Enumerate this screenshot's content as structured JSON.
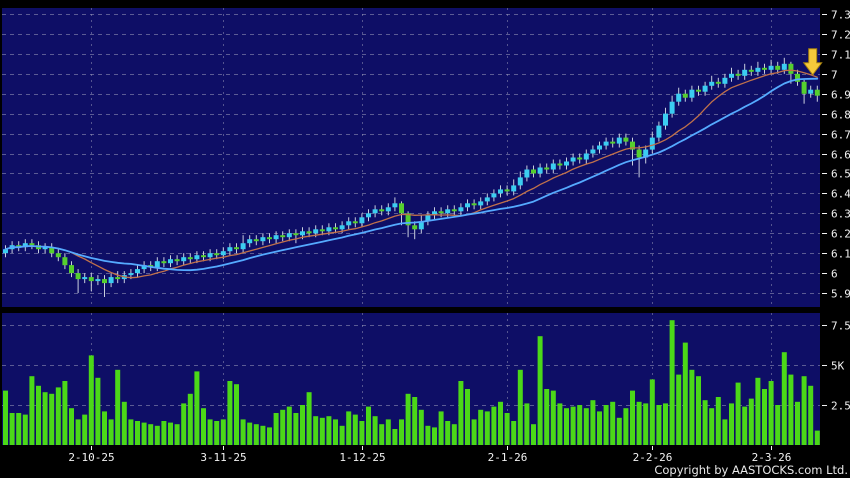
{
  "footer": {
    "copyright": "Copyright by AASTOCKS.com Ltd."
  },
  "colors": {
    "background": "#000000",
    "plot_bg": "#0E0E66",
    "grid": "#9A9ABB",
    "text": "#F2F2F2",
    "up": "#3BCDF1",
    "down": "#55CF2E",
    "wick": "#C9CFDE",
    "volume": "#4BD818",
    "ma10": "#C0714B",
    "ma20": "#55AAFF",
    "arrow_fill": "#F5C93B",
    "arrow_stroke": "#A8820F"
  },
  "chart_data": {
    "type": "candlestick_with_volume",
    "title": "",
    "legend_position": "none",
    "grid": "dashed",
    "price_axis": {
      "min": 5.83,
      "max": 7.33,
      "ticks": [
        {
          "label": "7.3",
          "value": 7.3
        },
        {
          "label": "7.2",
          "value": 7.2
        },
        {
          "label": "7.1",
          "value": 7.1
        },
        {
          "label": "7",
          "value": 7.0
        },
        {
          "label": "6.9",
          "value": 6.9
        },
        {
          "label": "6.8",
          "value": 6.8
        },
        {
          "label": "6.7",
          "value": 6.7
        },
        {
          "label": "6.6",
          "value": 6.6
        },
        {
          "label": "6.5",
          "value": 6.5
        },
        {
          "label": "6.4",
          "value": 6.4
        },
        {
          "label": "6.3",
          "value": 6.3
        },
        {
          "label": "6.2",
          "value": 6.2
        },
        {
          "label": "6.1",
          "value": 6.1
        },
        {
          "label": "6",
          "value": 6.0
        },
        {
          "label": "5.9",
          "value": 5.9
        }
      ]
    },
    "volume_axis": {
      "max": 8250,
      "ticks": [
        {
          "label": "7.5K",
          "value": 7500
        },
        {
          "label": "5K",
          "value": 5000
        },
        {
          "label": "2.5K",
          "value": 2500
        }
      ]
    },
    "x_axis": {
      "ticks": [
        {
          "label": "2-10-25",
          "index": 13
        },
        {
          "label": "3-11-25",
          "index": 33
        },
        {
          "label": "1-12-25",
          "index": 54
        },
        {
          "label": "2-1-26",
          "index": 76
        },
        {
          "label": "2-2-26",
          "index": 98
        },
        {
          "label": "2-3-26",
          "index": 116
        }
      ]
    },
    "moving_averages": [
      {
        "name": "ma10",
        "period": 10,
        "color_key": "ma10",
        "width": 1.3
      },
      {
        "name": "ma20",
        "period": 20,
        "color_key": "ma20",
        "width": 1.8
      }
    ],
    "annotation_arrow": {
      "candle_index": 122,
      "points_at_price": 7.0
    },
    "candles": [
      [
        6.1,
        6.14,
        6.08,
        6.12
      ],
      [
        6.12,
        6.16,
        6.1,
        6.14
      ],
      [
        6.14,
        6.16,
        6.11,
        6.13
      ],
      [
        6.13,
        6.17,
        6.11,
        6.15
      ],
      [
        6.15,
        6.17,
        6.12,
        6.14
      ],
      [
        6.14,
        6.16,
        6.1,
        6.12
      ],
      [
        6.12,
        6.15,
        6.1,
        6.13
      ],
      [
        6.13,
        6.15,
        6.08,
        6.1
      ],
      [
        6.1,
        6.12,
        6.06,
        6.08
      ],
      [
        6.08,
        6.1,
        6.02,
        6.04
      ],
      [
        6.04,
        6.06,
        5.98,
        6.0
      ],
      [
        6.0,
        6.02,
        5.9,
        5.97
      ],
      [
        5.97,
        6.0,
        5.95,
        5.98
      ],
      [
        5.98,
        6.0,
        5.91,
        5.96
      ],
      [
        5.96,
        5.99,
        5.94,
        5.97
      ],
      [
        5.97,
        5.99,
        5.88,
        5.95
      ],
      [
        5.95,
        6.0,
        5.93,
        5.98
      ],
      [
        5.98,
        6.01,
        5.95,
        5.97
      ],
      [
        5.97,
        6.01,
        5.95,
        5.99
      ],
      [
        5.99,
        6.02,
        5.97,
        6.0
      ],
      [
        6.0,
        6.04,
        5.98,
        6.02
      ],
      [
        6.02,
        6.06,
        6.0,
        6.04
      ],
      [
        6.04,
        6.06,
        6.01,
        6.03
      ],
      [
        6.03,
        6.08,
        6.01,
        6.06
      ],
      [
        6.06,
        6.08,
        6.03,
        6.05
      ],
      [
        6.05,
        6.09,
        6.03,
        6.07
      ],
      [
        6.07,
        6.09,
        6.04,
        6.06
      ],
      [
        6.06,
        6.1,
        6.04,
        6.08
      ],
      [
        6.08,
        6.1,
        6.05,
        6.07
      ],
      [
        6.07,
        6.11,
        6.05,
        6.09
      ],
      [
        6.09,
        6.11,
        6.06,
        6.08
      ],
      [
        6.08,
        6.12,
        6.06,
        6.1
      ],
      [
        6.1,
        6.12,
        6.07,
        6.09
      ],
      [
        6.09,
        6.13,
        6.07,
        6.11
      ],
      [
        6.11,
        6.15,
        6.09,
        6.13
      ],
      [
        6.13,
        6.15,
        6.1,
        6.12
      ],
      [
        6.12,
        6.19,
        6.1,
        6.15
      ],
      [
        6.15,
        6.19,
        6.13,
        6.17
      ],
      [
        6.17,
        6.19,
        6.14,
        6.16
      ],
      [
        6.16,
        6.2,
        6.14,
        6.18
      ],
      [
        6.18,
        6.2,
        6.15,
        6.17
      ],
      [
        6.17,
        6.21,
        6.15,
        6.19
      ],
      [
        6.19,
        6.21,
        6.16,
        6.18
      ],
      [
        6.18,
        6.22,
        6.16,
        6.2
      ],
      [
        6.2,
        6.22,
        6.15,
        6.19
      ],
      [
        6.19,
        6.23,
        6.17,
        6.21
      ],
      [
        6.21,
        6.23,
        6.18,
        6.2
      ],
      [
        6.2,
        6.24,
        6.18,
        6.22
      ],
      [
        6.22,
        6.24,
        6.19,
        6.21
      ],
      [
        6.21,
        6.25,
        6.19,
        6.23
      ],
      [
        6.23,
        6.25,
        6.2,
        6.22
      ],
      [
        6.22,
        6.26,
        6.2,
        6.24
      ],
      [
        6.24,
        6.28,
        6.22,
        6.26
      ],
      [
        6.26,
        6.28,
        6.23,
        6.25
      ],
      [
        6.25,
        6.3,
        6.23,
        6.28
      ],
      [
        6.28,
        6.32,
        6.26,
        6.3
      ],
      [
        6.3,
        6.34,
        6.28,
        6.32
      ],
      [
        6.32,
        6.34,
        6.29,
        6.31
      ],
      [
        6.31,
        6.35,
        6.29,
        6.33
      ],
      [
        6.33,
        6.38,
        6.31,
        6.35
      ],
      [
        6.35,
        6.36,
        6.24,
        6.3
      ],
      [
        6.3,
        6.31,
        6.18,
        6.24
      ],
      [
        6.24,
        6.26,
        6.17,
        6.22
      ],
      [
        6.22,
        6.29,
        6.2,
        6.26
      ],
      [
        6.26,
        6.31,
        6.24,
        6.29
      ],
      [
        6.29,
        6.33,
        6.27,
        6.31
      ],
      [
        6.31,
        6.33,
        6.28,
        6.3
      ],
      [
        6.3,
        6.34,
        6.28,
        6.32
      ],
      [
        6.32,
        6.34,
        6.29,
        6.31
      ],
      [
        6.31,
        6.35,
        6.29,
        6.33
      ],
      [
        6.33,
        6.37,
        6.31,
        6.35
      ],
      [
        6.35,
        6.37,
        6.32,
        6.34
      ],
      [
        6.34,
        6.38,
        6.32,
        6.36
      ],
      [
        6.36,
        6.4,
        6.34,
        6.38
      ],
      [
        6.38,
        6.42,
        6.36,
        6.4
      ],
      [
        6.4,
        6.44,
        6.38,
        6.42
      ],
      [
        6.42,
        6.44,
        6.39,
        6.41
      ],
      [
        6.41,
        6.47,
        6.39,
        6.44
      ],
      [
        6.44,
        6.51,
        6.42,
        6.48
      ],
      [
        6.48,
        6.54,
        6.46,
        6.52
      ],
      [
        6.52,
        6.54,
        6.48,
        6.5
      ],
      [
        6.5,
        6.55,
        6.48,
        6.53
      ],
      [
        6.53,
        6.55,
        6.5,
        6.52
      ],
      [
        6.52,
        6.57,
        6.5,
        6.55
      ],
      [
        6.55,
        6.57,
        6.52,
        6.54
      ],
      [
        6.54,
        6.58,
        6.52,
        6.56
      ],
      [
        6.56,
        6.6,
        6.54,
        6.58
      ],
      [
        6.58,
        6.6,
        6.55,
        6.57
      ],
      [
        6.57,
        6.62,
        6.55,
        6.6
      ],
      [
        6.6,
        6.64,
        6.58,
        6.62
      ],
      [
        6.62,
        6.66,
        6.6,
        6.64
      ],
      [
        6.64,
        6.68,
        6.62,
        6.66
      ],
      [
        6.66,
        6.68,
        6.63,
        6.65
      ],
      [
        6.65,
        6.7,
        6.63,
        6.68
      ],
      [
        6.68,
        6.7,
        6.64,
        6.66
      ],
      [
        6.66,
        6.68,
        6.54,
        6.62
      ],
      [
        6.62,
        6.64,
        6.48,
        6.58
      ],
      [
        6.58,
        6.64,
        6.55,
        6.62
      ],
      [
        6.62,
        6.71,
        6.6,
        6.68
      ],
      [
        6.68,
        6.76,
        6.66,
        6.74
      ],
      [
        6.74,
        6.83,
        6.72,
        6.8
      ],
      [
        6.8,
        6.89,
        6.78,
        6.86
      ],
      [
        6.86,
        6.93,
        6.84,
        6.9
      ],
      [
        6.9,
        6.92,
        6.86,
        6.88
      ],
      [
        6.88,
        6.94,
        6.86,
        6.92
      ],
      [
        6.92,
        6.94,
        6.89,
        6.91
      ],
      [
        6.91,
        6.96,
        6.89,
        6.94
      ],
      [
        6.94,
        6.99,
        6.92,
        6.96
      ],
      [
        6.96,
        6.98,
        6.93,
        6.95
      ],
      [
        6.95,
        7.0,
        6.93,
        6.98
      ],
      [
        6.98,
        7.03,
        6.96,
        7.0
      ],
      [
        7.0,
        7.02,
        6.97,
        6.99
      ],
      [
        6.99,
        7.05,
        6.97,
        7.02
      ],
      [
        7.02,
        7.04,
        6.99,
        7.01
      ],
      [
        7.01,
        7.06,
        6.99,
        7.03
      ],
      [
        7.03,
        7.05,
        7.0,
        7.02
      ],
      [
        7.02,
        7.07,
        7.0,
        7.04
      ],
      [
        7.04,
        7.06,
        7.0,
        7.02
      ],
      [
        7.02,
        7.08,
        7.0,
        7.05
      ],
      [
        7.05,
        7.06,
        6.95,
        7.0
      ],
      [
        7.0,
        7.02,
        6.94,
        6.96
      ],
      [
        6.96,
        6.97,
        6.85,
        6.9
      ],
      [
        6.9,
        6.94,
        6.88,
        6.92
      ],
      [
        6.92,
        6.94,
        6.86,
        6.89
      ]
    ],
    "volumes": [
      3400,
      2000,
      2000,
      1900,
      4300,
      3700,
      3300,
      3200,
      3600,
      4000,
      2300,
      1600,
      1900,
      5600,
      4200,
      2100,
      1600,
      4700,
      2700,
      1600,
      1500,
      1400,
      1300,
      1200,
      1500,
      1400,
      1300,
      2600,
      3200,
      4600,
      2300,
      1600,
      1500,
      1600,
      4000,
      3800,
      1600,
      1400,
      1300,
      1200,
      1100,
      2000,
      2200,
      2400,
      2000,
      2500,
      3300,
      1800,
      1700,
      1800,
      1600,
      1200,
      2100,
      1900,
      1500,
      2400,
      1800,
      1300,
      1600,
      1000,
      1600,
      3200,
      3000,
      2200,
      1200,
      1100,
      2100,
      1500,
      1300,
      4000,
      3500,
      1600,
      2200,
      2100,
      2400,
      2700,
      2000,
      1500,
      4700,
      2600,
      1300,
      6800,
      3500,
      3400,
      2600,
      2300,
      2400,
      2500,
      2300,
      2800,
      2100,
      2500,
      2700,
      1700,
      2300,
      3400,
      2700,
      2600,
      4100,
      2500,
      2600,
      7800,
      4400,
      6400,
      4700,
      4300,
      2800,
      2300,
      3000,
      1600,
      2600,
      3900,
      2400,
      2900,
      4200,
      3500,
      4000,
      2500,
      5800,
      4400,
      2700,
      4300,
      3700,
      900
    ]
  }
}
